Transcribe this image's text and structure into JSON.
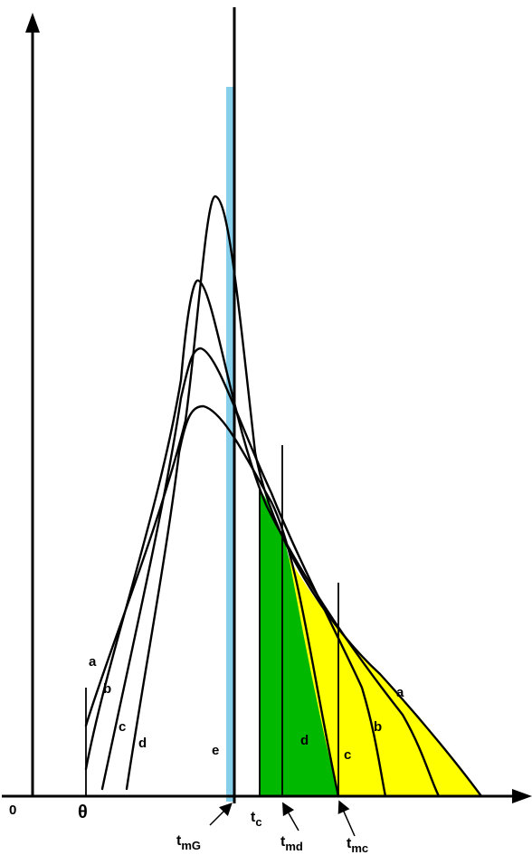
{
  "colors": {
    "cyan_band": "#87CEEB",
    "green_fill": "#00B800",
    "yellow_fill": "#FFFF00",
    "ink": "#000000"
  },
  "labels": {
    "origin": "0",
    "theta": "θ",
    "curve_a_top": "a",
    "curve_b_top": "b",
    "curve_c_top": "c",
    "curve_d_top": "d",
    "curve_e": "e",
    "curve_d_bottom": "d",
    "curve_c_bottom": "c",
    "curve_b_bottom": "b",
    "curve_a_bottom": "a",
    "tc_main": "t",
    "tc_sub": "c",
    "tmG_main": "t",
    "tmG_sub": "mG",
    "tmd_main": "t",
    "tmd_sub": "md",
    "tmc_main": "t",
    "tmc_sub": "mc"
  }
}
